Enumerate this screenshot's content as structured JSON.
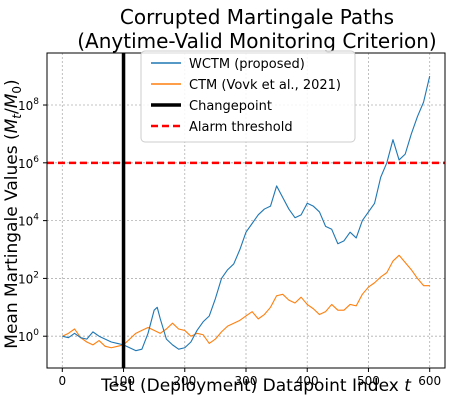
{
  "chart_data": {
    "type": "line",
    "title_line1": "Corrupted Martingale Paths",
    "title_line2": "(Anytime-Valid Monitoring Criterion)",
    "xlabel_text": "Test (Deployment) Datapoint Index ",
    "xlabel_var": "t",
    "ylabel_text": "Mean Martingale Values (",
    "ylabel_var": "M",
    "ylabel_sub1": "t",
    "ylabel_slash": "/",
    "ylabel_sub2": "0",
    "ylabel_close": ")",
    "y_scale": "log",
    "xlim": [
      -25,
      625
    ],
    "ylim_log10": [
      -1.1,
      9.8
    ],
    "x_ticks": [
      {
        "value": 0,
        "label": "0"
      },
      {
        "value": 100,
        "label": "100"
      },
      {
        "value": 200,
        "label": "200"
      },
      {
        "value": 300,
        "label": "300"
      },
      {
        "value": 400,
        "label": "400"
      },
      {
        "value": 500,
        "label": "500"
      },
      {
        "value": 600,
        "label": "600"
      }
    ],
    "y_ticks": [
      {
        "exp": 0,
        "base": "10",
        "sup": "0"
      },
      {
        "exp": 2,
        "base": "10",
        "sup": "2"
      },
      {
        "exp": 4,
        "base": "10",
        "sup": "4"
      },
      {
        "exp": 6,
        "base": "10",
        "sup": "6"
      },
      {
        "exp": 8,
        "base": "10",
        "sup": "8"
      }
    ],
    "grid": true,
    "legend_position": "upper center",
    "series": [
      {
        "name": "WCTM (proposed)",
        "color": "#1f77b4",
        "x": [
          0,
          10,
          20,
          30,
          40,
          50,
          60,
          70,
          80,
          90,
          100,
          110,
          120,
          130,
          140,
          150,
          155,
          160,
          170,
          180,
          190,
          200,
          210,
          220,
          230,
          240,
          250,
          260,
          270,
          280,
          290,
          300,
          310,
          320,
          330,
          340,
          350,
          360,
          370,
          380,
          390,
          400,
          410,
          420,
          430,
          440,
          450,
          460,
          470,
          480,
          490,
          500,
          510,
          520,
          530,
          540,
          550,
          560,
          570,
          580,
          590,
          600
        ],
        "log10_y": [
          0.0,
          -0.05,
          0.1,
          -0.05,
          -0.1,
          0.15,
          0.0,
          -0.1,
          -0.2,
          -0.25,
          -0.3,
          -0.4,
          -0.5,
          -0.45,
          0.1,
          0.9,
          1.0,
          0.6,
          -0.1,
          -0.3,
          -0.45,
          -0.4,
          -0.2,
          0.2,
          0.5,
          0.7,
          1.3,
          2.0,
          2.3,
          2.5,
          3.0,
          3.6,
          3.9,
          4.2,
          4.4,
          4.5,
          5.2,
          4.8,
          4.4,
          4.1,
          4.2,
          4.6,
          4.5,
          4.3,
          3.8,
          3.7,
          3.2,
          3.3,
          3.6,
          3.4,
          4.0,
          4.3,
          4.6,
          5.5,
          6.0,
          6.8,
          6.1,
          6.3,
          7.0,
          7.6,
          8.1,
          9.0
        ]
      },
      {
        "name": "CTM (Vovk et al., 2021)",
        "color": "#ff7f0e",
        "x": [
          0,
          10,
          20,
          30,
          40,
          50,
          60,
          70,
          80,
          90,
          100,
          110,
          120,
          130,
          140,
          150,
          160,
          170,
          180,
          190,
          200,
          210,
          220,
          230,
          240,
          250,
          260,
          270,
          280,
          290,
          300,
          310,
          320,
          330,
          340,
          350,
          360,
          370,
          380,
          390,
          400,
          410,
          420,
          430,
          440,
          450,
          460,
          470,
          480,
          490,
          500,
          510,
          520,
          530,
          540,
          550,
          560,
          570,
          580,
          590,
          600
        ],
        "log10_y": [
          0.0,
          0.1,
          0.25,
          -0.05,
          -0.2,
          -0.3,
          -0.15,
          -0.35,
          -0.4,
          -0.35,
          -0.3,
          -0.1,
          0.1,
          0.2,
          0.3,
          0.2,
          0.1,
          0.25,
          0.45,
          0.25,
          0.2,
          0.0,
          0.1,
          0.05,
          -0.25,
          -0.1,
          0.15,
          0.35,
          0.45,
          0.55,
          0.7,
          0.85,
          0.6,
          0.75,
          1.0,
          1.4,
          1.45,
          1.25,
          1.15,
          1.35,
          1.1,
          0.95,
          0.75,
          0.85,
          1.1,
          0.9,
          0.9,
          1.1,
          1.05,
          1.45,
          1.7,
          1.85,
          2.05,
          2.2,
          2.6,
          2.8,
          2.55,
          2.3,
          2.0,
          1.75,
          1.75
        ]
      }
    ],
    "changepoint": {
      "name": "Changepoint",
      "x": 100,
      "color": "#000000"
    },
    "alarm_threshold": {
      "name": "Alarm threshold",
      "log10_y": 6,
      "color": "#ff0000"
    }
  }
}
